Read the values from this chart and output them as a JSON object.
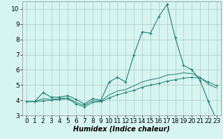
{
  "xlabel": "Humidex (Indice chaleur)",
  "background_color": "#d6f5f0",
  "line_color": "#1e7d72",
  "xlim": [
    -0.5,
    23.5
  ],
  "ylim": [
    3,
    10.5
  ],
  "yticks": [
    3,
    4,
    5,
    6,
    7,
    8,
    9,
    10
  ],
  "xticks": [
    0,
    1,
    2,
    3,
    4,
    5,
    6,
    7,
    8,
    9,
    10,
    11,
    12,
    13,
    14,
    15,
    16,
    17,
    18,
    19,
    20,
    21,
    22,
    23
  ],
  "curve1_x": [
    0,
    1,
    2,
    3,
    4,
    5,
    6,
    7,
    8,
    9,
    10,
    11,
    12,
    13,
    14,
    15,
    16,
    17,
    18,
    19,
    20,
    21,
    22,
    23
  ],
  "curve1_y": [
    3.9,
    3.9,
    4.5,
    4.2,
    4.2,
    4.3,
    4.05,
    3.75,
    4.1,
    4.0,
    5.2,
    5.5,
    5.2,
    7.0,
    8.5,
    8.4,
    9.5,
    10.3,
    8.1,
    6.3,
    6.0,
    5.3,
    3.9,
    2.7
  ],
  "curve2_x": [
    0,
    1,
    2,
    3,
    4,
    5,
    6,
    7,
    8,
    9,
    10,
    11,
    12,
    13,
    14,
    15,
    16,
    17,
    18,
    19,
    20,
    21,
    22,
    23
  ],
  "curve2_y": [
    3.9,
    3.9,
    3.95,
    4.0,
    4.05,
    4.1,
    3.75,
    3.55,
    3.85,
    3.9,
    4.15,
    4.35,
    4.5,
    4.65,
    4.85,
    5.0,
    5.1,
    5.25,
    5.35,
    5.45,
    5.5,
    5.45,
    5.2,
    4.95
  ],
  "curve3_x": [
    0,
    1,
    2,
    3,
    4,
    5,
    6,
    7,
    8,
    9,
    10,
    11,
    12,
    13,
    14,
    15,
    16,
    17,
    18,
    19,
    20,
    21,
    22,
    23
  ],
  "curve3_y": [
    3.9,
    3.9,
    4.1,
    4.05,
    4.1,
    4.15,
    3.85,
    3.65,
    3.95,
    3.95,
    4.35,
    4.6,
    4.7,
    4.95,
    5.2,
    5.35,
    5.45,
    5.65,
    5.7,
    5.8,
    5.75,
    5.5,
    5.05,
    4.8
  ],
  "grid_color": "#b0c8c4",
  "font_size": 6.5,
  "xlabel_fontsize": 7.0
}
